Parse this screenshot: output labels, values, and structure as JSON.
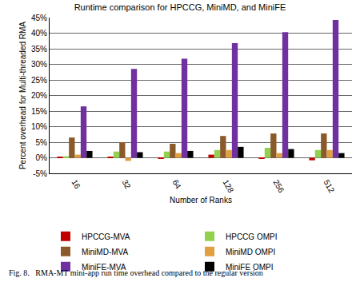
{
  "chart_data": {
    "type": "bar",
    "title": "Runtime comparison for HPCCG, MiniMD, and MiniFE",
    "x_label": "Number of Ranks",
    "y_label": "Percent overhead for Multi-threaded RMA",
    "caption": "Fig. 8.   RMA-MT mini-app run time overhead compared to the regular version",
    "categories": [
      "16",
      "32",
      "64",
      "128",
      "256",
      "512"
    ],
    "series": [
      {
        "name": "HPCCG-MVA",
        "color": "#c00000",
        "values": [
          0.3,
          0.2,
          -0.3,
          1.0,
          -0.3,
          -0.8
        ]
      },
      {
        "name": "HPCCG OMPI",
        "color": "#92d050",
        "values": [
          0.5,
          2.0,
          2.0,
          2.5,
          3.2,
          2.5
        ]
      },
      {
        "name": "MiniMD-MVA",
        "color": "#8b5a2b",
        "values": [
          6.5,
          5.0,
          4.5,
          7.0,
          7.8,
          7.8
        ]
      },
      {
        "name": "MiniMD OMPI",
        "color": "#e0a040",
        "values": [
          1.0,
          -1.0,
          1.5,
          2.5,
          1.5,
          2.5
        ]
      },
      {
        "name": "MiniFE-MVA",
        "color": "#7030a0",
        "values": [
          16.5,
          28.5,
          31.8,
          36.8,
          40.3,
          44.2
        ]
      },
      {
        "name": "MiniFE OMPI",
        "color": "#000000",
        "values": [
          2.2,
          1.8,
          2.2,
          3.5,
          2.8,
          1.5
        ]
      }
    ],
    "ylim": [
      -5,
      45
    ],
    "yticks": [
      {
        "value": -5,
        "label": "-5%"
      },
      {
        "value": 0,
        "label": "0%"
      },
      {
        "value": 5,
        "label": "5%"
      },
      {
        "value": 10,
        "label": "10%"
      },
      {
        "value": 15,
        "label": "15%"
      },
      {
        "value": 20,
        "label": "20%"
      },
      {
        "value": 25,
        "label": "25%"
      },
      {
        "value": 30,
        "label": "30%"
      },
      {
        "value": 35,
        "label": "35%"
      },
      {
        "value": 40,
        "label": "40%"
      },
      {
        "value": 45,
        "label": "45%"
      }
    ],
    "grid": true,
    "legend": "bottom"
  }
}
